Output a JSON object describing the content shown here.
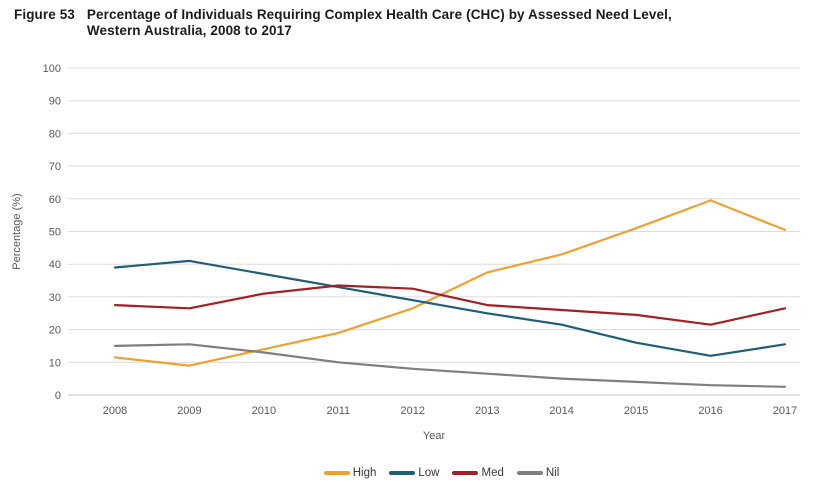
{
  "figure": {
    "label": "Figure 53",
    "title_line1": "Percentage of Individuals Requiring Complex Health Care (CHC) by Assessed Need Level,",
    "title_line2": "Western Australia, 2008 to 2017"
  },
  "chart_data": {
    "type": "line",
    "title": "Percentage of Individuals Requiring Complex Health Care (CHC) by Assessed Need Level, Western Australia, 2008 to 2017",
    "xlabel": "Year",
    "ylabel": "Percentage (%)",
    "x": [
      2008,
      2009,
      2010,
      2011,
      2012,
      2013,
      2014,
      2015,
      2016,
      2017
    ],
    "ylim": [
      0,
      100
    ],
    "ytick_step": 10,
    "grid": true,
    "legend_position": "bottom",
    "series": [
      {
        "name": "High",
        "color": "#EFA22F",
        "values": [
          11.5,
          9,
          14,
          19,
          26.5,
          37.5,
          43,
          51,
          59.5,
          50.5
        ]
      },
      {
        "name": "Low",
        "color": "#1D5F78",
        "values": [
          39,
          41,
          37,
          33,
          29,
          25,
          21.5,
          16,
          12,
          15.5
        ]
      },
      {
        "name": "Med",
        "color": "#A32024",
        "values": [
          27.5,
          26.5,
          31,
          33.5,
          32.5,
          27.5,
          26,
          24.5,
          21.5,
          26.5
        ]
      },
      {
        "name": "Nil",
        "color": "#7F7F7F",
        "values": [
          15,
          15.5,
          13,
          10,
          8,
          6.5,
          5,
          4,
          3,
          2.5
        ]
      }
    ]
  },
  "colors": {
    "gridline": "#DCDCDC",
    "zero_line": "#C6C6C6",
    "tick_text": "#595959",
    "axis_title_text": "#595959"
  }
}
